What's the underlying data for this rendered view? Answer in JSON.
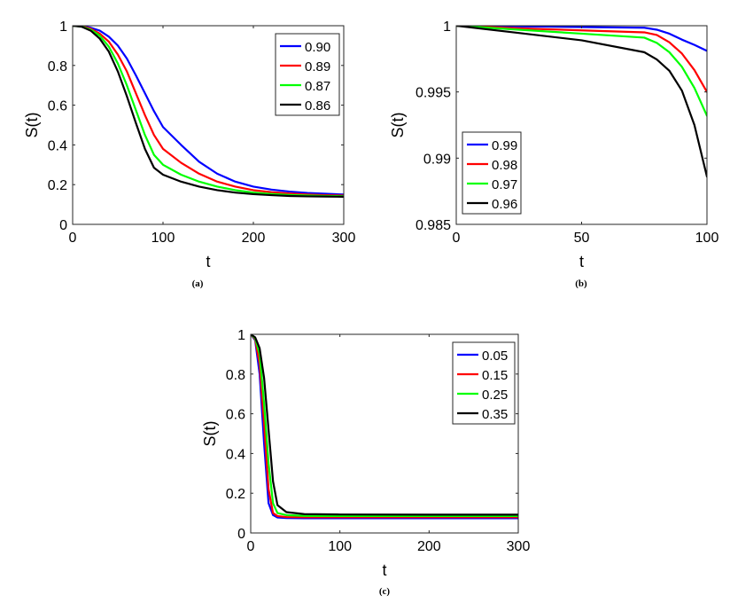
{
  "colors": {
    "blue": "#0000ff",
    "red": "#ff0000",
    "green": "#00ff00",
    "black": "#000000"
  },
  "chart_data": [
    {
      "type": "line",
      "caption": "(a)",
      "xlabel": "t",
      "ylabel": "S(t)",
      "xlim": [
        0,
        300
      ],
      "ylim": [
        0,
        1
      ],
      "xticks": [
        0,
        100,
        200,
        300
      ],
      "yticks": [
        0,
        0.2,
        0.4,
        0.6,
        0.8,
        1
      ],
      "ytick_labels": [
        "0",
        "0.2",
        "0.4",
        "0.6",
        "0.8",
        "1"
      ],
      "grid": false,
      "legend_position": "top-right",
      "series": [
        {
          "name": "0.90",
          "color": "#0000ff",
          "x": [
            0,
            10,
            20,
            30,
            40,
            50,
            60,
            70,
            80,
            90,
            100,
            120,
            140,
            160,
            180,
            200,
            220,
            240,
            260,
            280,
            300
          ],
          "y": [
            1,
            0.998,
            0.99,
            0.975,
            0.945,
            0.9,
            0.835,
            0.75,
            0.66,
            0.57,
            0.49,
            0.4,
            0.315,
            0.255,
            0.215,
            0.19,
            0.175,
            0.165,
            0.158,
            0.154,
            0.15
          ]
        },
        {
          "name": "0.89",
          "color": "#ff0000",
          "x": [
            0,
            10,
            20,
            30,
            40,
            50,
            60,
            70,
            80,
            90,
            100,
            120,
            140,
            160,
            180,
            200,
            220,
            240,
            260,
            280,
            300
          ],
          "y": [
            1,
            0.997,
            0.985,
            0.96,
            0.92,
            0.855,
            0.77,
            0.66,
            0.55,
            0.45,
            0.38,
            0.31,
            0.255,
            0.215,
            0.19,
            0.172,
            0.162,
            0.155,
            0.15,
            0.147,
            0.145
          ]
        },
        {
          "name": "0.87",
          "color": "#00ff00",
          "x": [
            0,
            10,
            20,
            30,
            40,
            50,
            60,
            70,
            80,
            90,
            100,
            120,
            140,
            160,
            180,
            200,
            220,
            240,
            260,
            280,
            300
          ],
          "y": [
            1,
            0.996,
            0.98,
            0.95,
            0.895,
            0.81,
            0.7,
            0.575,
            0.45,
            0.35,
            0.3,
            0.25,
            0.215,
            0.19,
            0.172,
            0.16,
            0.153,
            0.148,
            0.145,
            0.143,
            0.142
          ]
        },
        {
          "name": "0.86",
          "color": "#000000",
          "x": [
            0,
            10,
            20,
            30,
            40,
            50,
            60,
            70,
            80,
            90,
            100,
            120,
            140,
            160,
            180,
            200,
            220,
            240,
            260,
            280,
            300
          ],
          "y": [
            1,
            0.995,
            0.975,
            0.935,
            0.87,
            0.77,
            0.645,
            0.51,
            0.38,
            0.285,
            0.25,
            0.215,
            0.19,
            0.172,
            0.16,
            0.152,
            0.147,
            0.143,
            0.141,
            0.14,
            0.139
          ]
        }
      ]
    },
    {
      "type": "line",
      "caption": "(b)",
      "xlabel": "t",
      "ylabel": "S(t)",
      "xlim": [
        0,
        100
      ],
      "ylim": [
        0.985,
        1
      ],
      "xticks": [
        0,
        50,
        100
      ],
      "yticks": [
        0.985,
        0.99,
        0.995,
        1
      ],
      "ytick_labels": [
        "0.985",
        "0.99",
        "0.995",
        "1"
      ],
      "grid": false,
      "legend_position": "bottom-left",
      "series": [
        {
          "name": "0.99",
          "color": "#0000ff",
          "x": [
            0,
            25,
            50,
            75,
            80,
            85,
            90,
            95,
            100
          ],
          "y": [
            1,
            0.99995,
            0.9999,
            0.99985,
            0.9997,
            0.9994,
            0.99895,
            0.99855,
            0.9981
          ]
        },
        {
          "name": "0.98",
          "color": "#ff0000",
          "x": [
            0,
            25,
            50,
            75,
            80,
            85,
            90,
            95,
            100
          ],
          "y": [
            1,
            0.9998,
            0.99965,
            0.9995,
            0.9993,
            0.99875,
            0.9979,
            0.99665,
            0.995
          ]
        },
        {
          "name": "0.97",
          "color": "#00ff00",
          "x": [
            0,
            25,
            50,
            75,
            80,
            85,
            90,
            95,
            100
          ],
          "y": [
            1,
            0.9997,
            0.9994,
            0.9991,
            0.9987,
            0.998,
            0.9969,
            0.9953,
            0.9932
          ]
        },
        {
          "name": "0.96",
          "color": "#000000",
          "x": [
            0,
            25,
            50,
            75,
            80,
            85,
            90,
            95,
            100
          ],
          "y": [
            1,
            0.99945,
            0.9989,
            0.998,
            0.99745,
            0.9966,
            0.9951,
            0.9925,
            0.9886
          ]
        }
      ]
    },
    {
      "type": "line",
      "caption": "(c)",
      "xlabel": "t",
      "ylabel": "S(t)",
      "xlim": [
        0,
        300
      ],
      "ylim": [
        0,
        1
      ],
      "xticks": [
        0,
        100,
        200,
        300
      ],
      "yticks": [
        0,
        0.2,
        0.4,
        0.6,
        0.8,
        1
      ],
      "ytick_labels": [
        "0",
        "0.2",
        "0.4",
        "0.6",
        "0.8",
        "1"
      ],
      "grid": false,
      "legend_position": "top-right",
      "series": [
        {
          "name": "0.05",
          "color": "#0000ff",
          "x": [
            0,
            5,
            10,
            15,
            20,
            25,
            30,
            40,
            60,
            100,
            200,
            300
          ],
          "y": [
            1,
            0.97,
            0.8,
            0.45,
            0.15,
            0.09,
            0.078,
            0.075,
            0.074,
            0.074,
            0.074,
            0.074
          ]
        },
        {
          "name": "0.15",
          "color": "#ff0000",
          "x": [
            0,
            5,
            10,
            15,
            20,
            25,
            30,
            40,
            60,
            100,
            200,
            300
          ],
          "y": [
            1,
            0.975,
            0.85,
            0.55,
            0.22,
            0.1,
            0.085,
            0.08,
            0.079,
            0.079,
            0.079,
            0.079
          ]
        },
        {
          "name": "0.25",
          "color": "#00ff00",
          "x": [
            0,
            5,
            10,
            15,
            20,
            25,
            30,
            40,
            60,
            100,
            200,
            300
          ],
          "y": [
            1,
            0.98,
            0.9,
            0.65,
            0.35,
            0.15,
            0.1,
            0.09,
            0.086,
            0.085,
            0.085,
            0.085
          ]
        },
        {
          "name": "0.35",
          "color": "#000000",
          "x": [
            0,
            5,
            10,
            15,
            20,
            25,
            30,
            40,
            60,
            100,
            200,
            300
          ],
          "y": [
            1,
            0.985,
            0.93,
            0.78,
            0.52,
            0.26,
            0.14,
            0.105,
            0.095,
            0.093,
            0.092,
            0.092
          ]
        }
      ]
    }
  ]
}
